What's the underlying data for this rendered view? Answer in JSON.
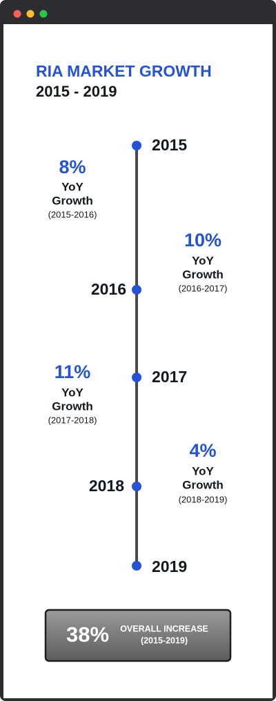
{
  "header": {
    "title": "RIA MARKET GROWTH",
    "subtitle": "2015 - 2019"
  },
  "timeline": {
    "years": [
      "2015",
      "2016",
      "2017",
      "2018",
      "2019"
    ]
  },
  "growth": [
    {
      "value": "8%",
      "line1": "YoY",
      "line2": "Growth",
      "period": "(2015-2016)"
    },
    {
      "value": "10%",
      "line1": "YoY",
      "line2": "Growth",
      "period": "(2016-2017)"
    },
    {
      "value": "11%",
      "line1": "YoY",
      "line2": "Growth",
      "period": "(2017-2018)"
    },
    {
      "value": "4%",
      "line1": "YoY",
      "line2": "Growth",
      "period": "(2018-2019)"
    }
  ],
  "summary": {
    "value": "38%",
    "label": "OVERALL INCREASE",
    "period": "(2015-2019)"
  }
}
